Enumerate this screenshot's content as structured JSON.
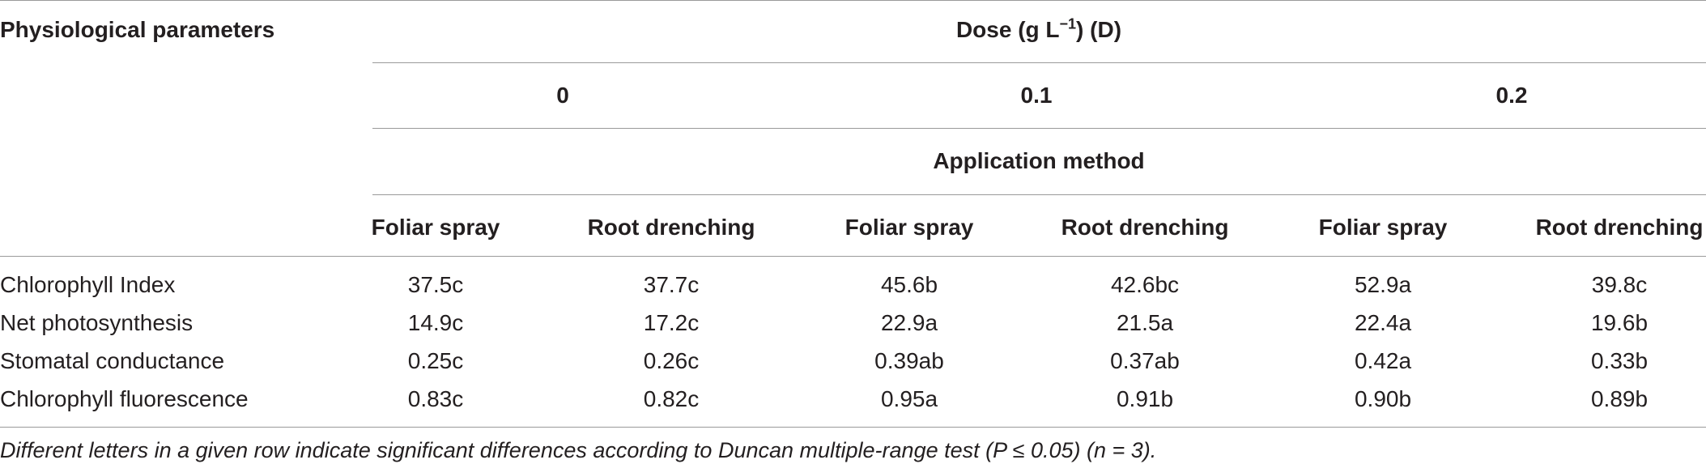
{
  "table": {
    "row_header": "Physiological parameters",
    "dose_header": {
      "prefix": "Dose (g L",
      "superscript": "−1",
      "suffix": ") (D)"
    },
    "doses": [
      "0",
      "0.1",
      "0.2"
    ],
    "application_header": "Application method",
    "methods": [
      "Foliar spray",
      "Root drenching",
      "Foliar spray",
      "Root drenching",
      "Foliar spray",
      "Root drenching"
    ],
    "rows": [
      {
        "parameter": "Chlorophyll Index",
        "values": [
          "37.5c",
          "37.7c",
          "45.6b",
          "42.6bc",
          "52.9a",
          "39.8c"
        ]
      },
      {
        "parameter": "Net photosynthesis",
        "values": [
          "14.9c",
          "17.2c",
          "22.9a",
          "21.5a",
          "22.4a",
          "19.6b"
        ]
      },
      {
        "parameter": "Stomatal conductance",
        "values": [
          "0.25c",
          "0.26c",
          "0.39ab",
          "0.37ab",
          "0.42a",
          "0.33b"
        ]
      },
      {
        "parameter": "Chlorophyll fluorescence",
        "values": [
          "0.83c",
          "0.82c",
          "0.95a",
          "0.91b",
          "0.90b",
          "0.89b"
        ]
      }
    ],
    "footnote": "Different letters in a given row indicate significant differences according to Duncan multiple-range test (P ≤ 0.05) (n = 3)."
  }
}
